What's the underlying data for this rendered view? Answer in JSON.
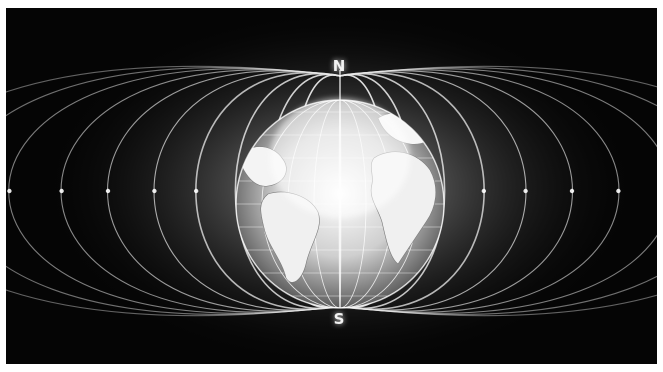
{
  "image": {
    "poles": {
      "north": "N",
      "south": "S"
    },
    "colors": {
      "background": "#050505",
      "field_line": "#e8e8e8",
      "glow": "#ffffff"
    }
  }
}
